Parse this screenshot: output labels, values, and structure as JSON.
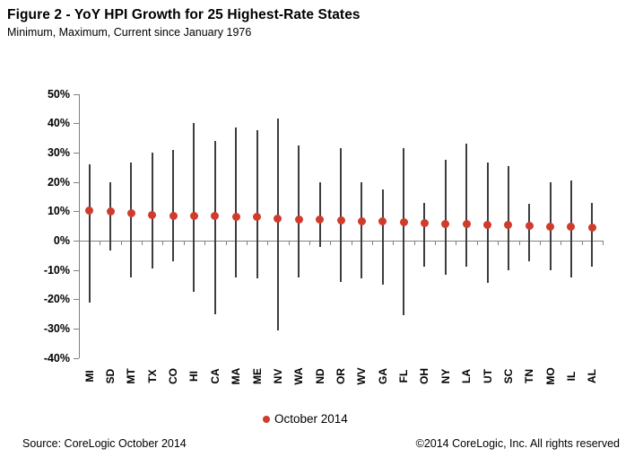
{
  "header": {
    "title": "Figure 2 - YoY HPI Growth for 25 Highest-Rate States",
    "subtitle": "Minimum, Maximum, Current since January 1976"
  },
  "legend": {
    "label": "October 2014"
  },
  "footer": {
    "source": "Source: CoreLogic  October 2014",
    "copyright": "©2014 CoreLogic, Inc. All rights reserved"
  },
  "colors": {
    "dot": "#d13b2b",
    "range_line": "#3d3d3d",
    "axis": "#808080",
    "text": "#000000"
  },
  "chart_data": {
    "type": "bar",
    "subtype": "min-max range lines with current-value dot overlay (floating bar + scatter)",
    "title": "Figure 2 - YoY HPI Growth for 25 Highest-Rate States",
    "subtitle": "Minimum, Maximum, Current since January 1976",
    "categories": [
      "MI",
      "SD",
      "MT",
      "TX",
      "CO",
      "HI",
      "CA",
      "MA",
      "ME",
      "NV",
      "WA",
      "ND",
      "OR",
      "WV",
      "GA",
      "FL",
      "OH",
      "NY",
      "LA",
      "UT",
      "SC",
      "TN",
      "MO",
      "IL",
      "AL"
    ],
    "series": [
      {
        "name": "Minimum",
        "values": [
          -21,
          -3.5,
          -12.5,
          -9.5,
          -7,
          -17.5,
          -25,
          -12.5,
          -13,
          -30.5,
          -12.5,
          -2,
          -14,
          -13,
          -15,
          -25.5,
          -9,
          -11.5,
          -9,
          -14.5,
          -10,
          -7,
          -10,
          -12.5,
          -9
        ]
      },
      {
        "name": "Maximum",
        "values": [
          26,
          20,
          26.5,
          30,
          31,
          40,
          34,
          38.5,
          37.5,
          41.5,
          32.5,
          20,
          31.5,
          20,
          17.5,
          31.5,
          13,
          27.5,
          33,
          26.5,
          25.5,
          12.5,
          20,
          20.5,
          13
        ]
      },
      {
        "name": "Current (October 2014)",
        "values": [
          10.2,
          10.1,
          9.2,
          8.8,
          8.5,
          8.4,
          8.3,
          8.2,
          8.0,
          7.6,
          7.3,
          7.2,
          7.0,
          6.7,
          6.6,
          6.3,
          6.1,
          5.8,
          5.6,
          5.5,
          5.3,
          5.2,
          4.8,
          4.6,
          4.4
        ]
      }
    ],
    "xlabel": "",
    "ylabel": "",
    "ylim": [
      -40,
      50
    ],
    "yticks": [
      50,
      40,
      30,
      20,
      10,
      0,
      -10,
      -20,
      -30,
      -40
    ],
    "ytick_format": "percent",
    "grid": false,
    "legend_position": "bottom-center",
    "legend_entries": [
      "October 2014"
    ]
  }
}
